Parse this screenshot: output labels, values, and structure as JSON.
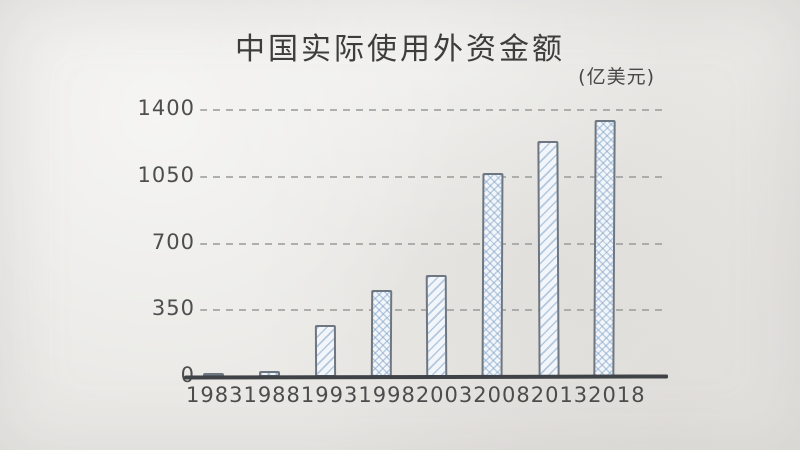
{
  "title": "中国实际使用外资金额",
  "unit_label": "(亿美元)",
  "chart_data": {
    "type": "bar",
    "title": "中国实际使用外资金额",
    "ylabel": "(亿美元)",
    "xlabel": "",
    "categories": [
      "1983",
      "1988",
      "1993",
      "1998",
      "2003",
      "2008",
      "2013",
      "2018"
    ],
    "values": [
      9,
      32,
      275,
      455,
      535,
      1070,
      1240,
      1350
    ],
    "yticks": [
      0,
      350,
      700,
      1050,
      1400
    ],
    "ylim": [
      0,
      1400
    ],
    "grid": "horizontal-dashed",
    "legend": "none",
    "bar_patterns": [
      "diagonal",
      "cross",
      "diagonal",
      "cross",
      "diagonal",
      "cross",
      "diagonal",
      "cross"
    ],
    "style": "hand-drawn sketch chart on paper texture"
  },
  "colors": {
    "background": "#eae9e6",
    "bar_fill": "#f2f6fa",
    "bar_hatch": "#7da0c6",
    "bar_outline": "#6e7781",
    "axis_line": "#3f4347",
    "gridline": "#a3a3a1",
    "text": "#4c4c4c"
  }
}
